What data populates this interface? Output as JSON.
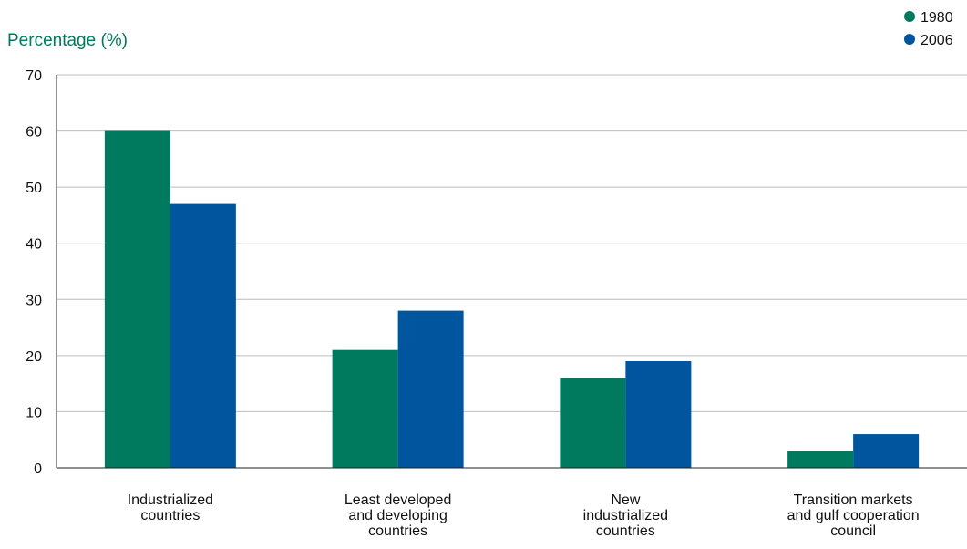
{
  "chart_data": {
    "type": "bar",
    "ylabel": "Percentage (%)",
    "xlabel": "",
    "title": "",
    "ylim": [
      0,
      70
    ],
    "yticks": [
      0,
      10,
      20,
      30,
      40,
      50,
      60,
      70
    ],
    "grid": true,
    "legend_position": "top-right",
    "categories": [
      [
        "Industrialized",
        "countries"
      ],
      [
        "Least developed",
        "and developing",
        "countries"
      ],
      [
        "New",
        "industrialized",
        "countries"
      ],
      [
        "Transition markets",
        "and gulf cooperation",
        "council"
      ]
    ],
    "series": [
      {
        "name": "1980",
        "color": "#007A5E",
        "values": [
          60,
          21,
          16,
          3
        ]
      },
      {
        "name": "2006",
        "color": "#00569E",
        "values": [
          47,
          28,
          19,
          6
        ]
      }
    ],
    "ylabel_color": "#007A5E"
  }
}
